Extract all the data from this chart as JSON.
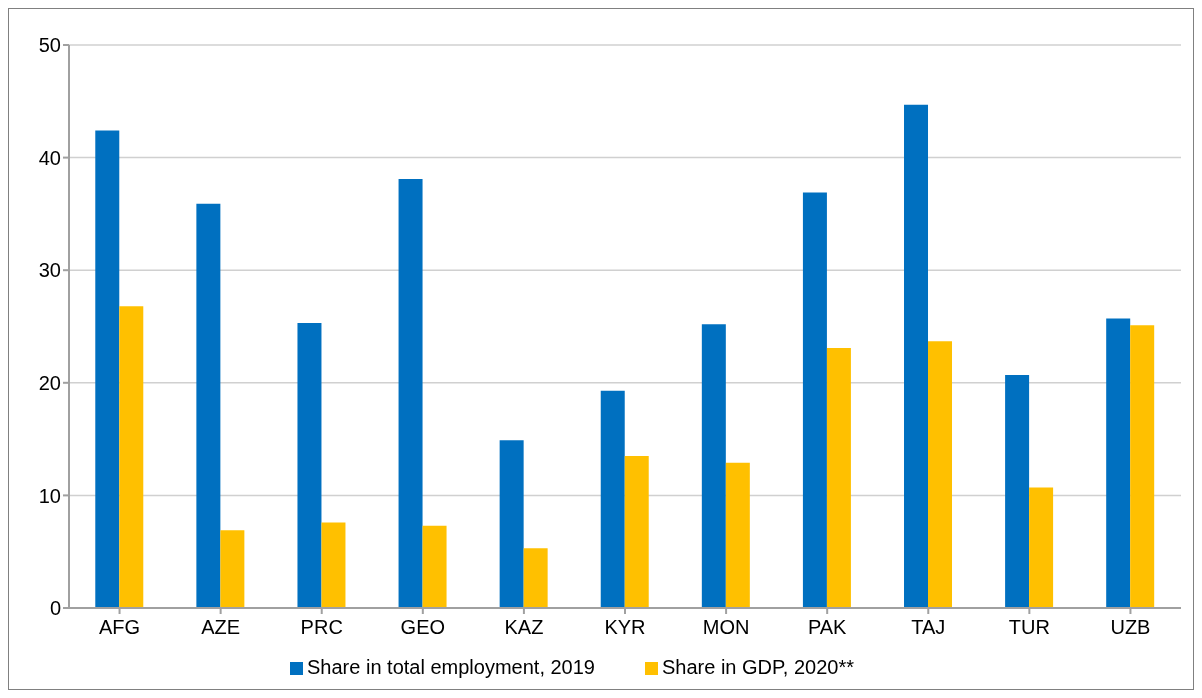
{
  "chart_data": {
    "type": "bar",
    "categories": [
      "AFG",
      "AZE",
      "PRC",
      "GEO",
      "KAZ",
      "KYR",
      "MON",
      "PAK",
      "TAJ",
      "TUR",
      "UZB"
    ],
    "series": [
      {
        "name": "Share in total employment, 2019",
        "color": "#0070c0",
        "values": [
          42.4,
          35.9,
          25.3,
          38.1,
          14.9,
          19.3,
          25.2,
          36.9,
          44.7,
          20.7,
          25.7
        ]
      },
      {
        "name": "Share in GDP, 2020**",
        "color": "#ffc000",
        "values": [
          26.8,
          6.9,
          7.6,
          7.3,
          5.3,
          13.5,
          12.9,
          23.1,
          23.7,
          10.7,
          25.1
        ]
      }
    ],
    "ylim": [
      0,
      50
    ],
    "yticks": [
      0,
      10,
      20,
      30,
      40,
      50
    ],
    "grid": "y",
    "legend": "bottom"
  }
}
